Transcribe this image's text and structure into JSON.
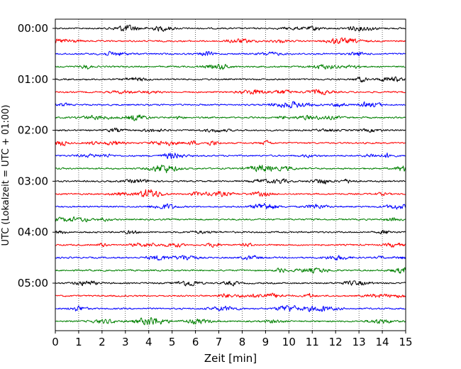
{
  "chart_data": {
    "type": "line",
    "xlabel": "Zeit  [min]",
    "ylabel": "UTC (Lokalzeit = UTC + 01:00)",
    "xlim": [
      0,
      15
    ],
    "x_ticks": [
      "0",
      "1",
      "2",
      "3",
      "4",
      "5",
      "6",
      "7",
      "8",
      "9",
      "10",
      "11",
      "12",
      "13",
      "14",
      "15"
    ],
    "y_ticks": [
      "00:00",
      "01:00",
      "02:00",
      "03:00",
      "04:00",
      "05:00"
    ],
    "grid": "vertical-dotted",
    "trace_interval_minutes": 15,
    "trace_count": 24,
    "trace_colors": [
      "#000000",
      "#ff0000",
      "#0000ff",
      "#008000"
    ]
  }
}
